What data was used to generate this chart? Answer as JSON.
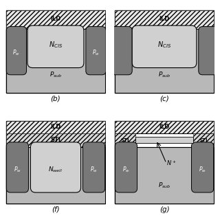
{
  "white": "#ffffff",
  "light_gray": "#c0c0c0",
  "mid_gray": "#999999",
  "dark_gray": "#6a6a6a",
  "black": "#000000",
  "ild_face": "#e8e8e8",
  "sti_face": "#d8d8d8",
  "psub_face": "#b8b8b8",
  "pw_face": "#787878",
  "ncis_face": "#d0d0d0",
  "nwell_face": "#d0d0d0",
  "nplus_face": "#d0d0d0",
  "panel_labels": [
    "(b)",
    "(c)",
    "(f)",
    "(g)"
  ]
}
